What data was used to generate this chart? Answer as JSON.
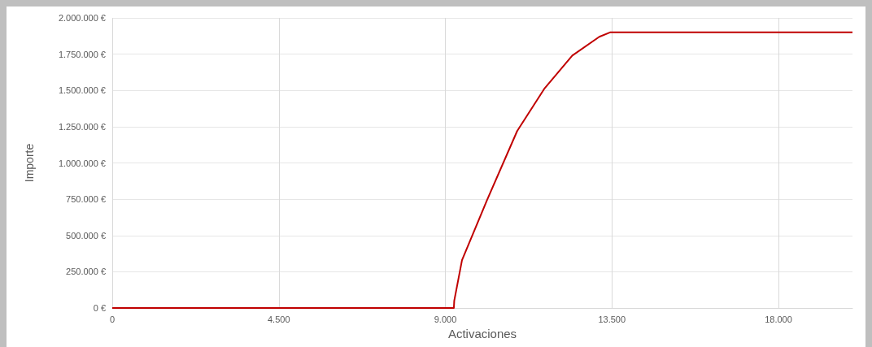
{
  "chart_data": {
    "type": "line",
    "xlabel": "Activaciones",
    "ylabel": "Importe",
    "series": [
      {
        "color": "#c00000",
        "x": [
          0,
          9000,
          9230,
          9240,
          9450,
          10120,
          10940,
          11670,
          12430,
          13160,
          13450,
          13600,
          20000
        ],
        "values": [
          0,
          0,
          0,
          50000,
          330000,
          740000,
          1220000,
          1510000,
          1740000,
          1870000,
          1900000,
          1900000,
          1900000
        ]
      }
    ],
    "xlim": [
      0,
      20000
    ],
    "xticks": [
      0,
      {
        "value": 4500,
        "label": "4.500"
      },
      {
        "value": 9000,
        "label": "9.000"
      },
      {
        "value": 13500,
        "label": "13.500"
      },
      {
        "value": 18000,
        "label": "18.000"
      }
    ],
    "ylim": [
      0,
      2000000
    ],
    "yticks": [
      {
        "value": 0,
        "label": "0 €"
      },
      {
        "value": 250000,
        "label": "250.000 €"
      },
      {
        "value": 500000,
        "label": "500.000 €"
      },
      {
        "value": 750000,
        "label": "750.000 €"
      },
      {
        "value": 1000000,
        "label": "1.000.000 €"
      },
      {
        "value": 1250000,
        "label": "1.250.000 €"
      },
      {
        "value": 1500000,
        "label": "1.500.000 €"
      },
      {
        "value": 1750000,
        "label": "1.750.000 €"
      },
      {
        "value": 2000000,
        "label": "2.000.000 €"
      }
    ],
    "grid": true,
    "marker": "none",
    "line_style": "solid"
  }
}
